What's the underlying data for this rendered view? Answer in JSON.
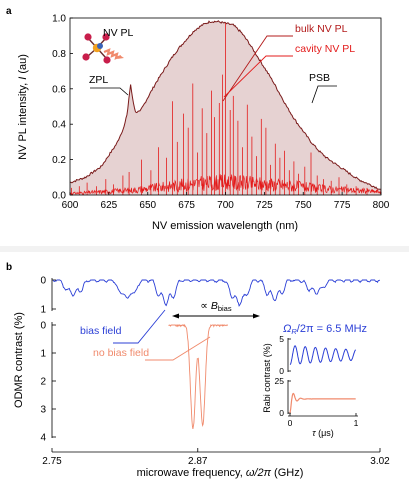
{
  "panels": {
    "a": "a",
    "b": "b"
  },
  "chart_data": [
    {
      "type": "line",
      "panel": "a",
      "xlabel": "NV emission wavelength (nm)",
      "ylabel": "NV PL intensity, I (au)",
      "ylabel_main": "NV PL intensity, ",
      "ylabel_var": "I",
      "ylabel_unit": " (au)",
      "xlim": [
        600,
        800
      ],
      "ylim": [
        0,
        1.0
      ],
      "xticks": [
        600,
        625,
        650,
        675,
        700,
        725,
        750,
        775,
        800
      ],
      "xtick_labels": [
        "600",
        "625",
        "650",
        "675",
        "700",
        "725",
        "750",
        "775",
        "800"
      ],
      "yticks": [
        0,
        0.2,
        0.4,
        0.6,
        0.8,
        1.0
      ],
      "ytick_labels": [
        "0.0",
        "0.2",
        "0.4",
        "0.6",
        "0.8",
        "1.0"
      ],
      "legend": [
        "bulk NV PL",
        "cavity NV PL"
      ],
      "inset_label": "NV PL",
      "annotations": [
        "ZPL",
        "PSB"
      ],
      "colors": {
        "bulk": "#7a1b1b",
        "bulk_fill": "#e6d2d2",
        "cavity": "#e31b1b",
        "legend": "#b31b1b"
      },
      "series": [
        {
          "name": "bulk NV PL",
          "x": [
            600,
            610,
            620,
            630,
            635,
            637,
            638,
            639,
            640,
            642,
            645,
            650,
            655,
            660,
            665,
            670,
            675,
            680,
            685,
            690,
            695,
            700,
            705,
            710,
            715,
            720,
            725,
            730,
            735,
            740,
            745,
            750,
            755,
            760,
            765,
            770,
            775,
            780,
            785,
            790,
            795,
            800
          ],
          "y": [
            0.07,
            0.1,
            0.16,
            0.29,
            0.39,
            0.47,
            0.56,
            0.62,
            0.56,
            0.47,
            0.47,
            0.55,
            0.63,
            0.7,
            0.77,
            0.83,
            0.88,
            0.93,
            0.96,
            0.98,
            0.98,
            0.97,
            0.96,
            0.92,
            0.86,
            0.79,
            0.72,
            0.65,
            0.57,
            0.49,
            0.42,
            0.36,
            0.3,
            0.25,
            0.21,
            0.18,
            0.15,
            0.12,
            0.09,
            0.07,
            0.05,
            0.03
          ]
        },
        {
          "name": "cavity NV PL",
          "base_x": [
            600,
            620,
            640,
            660,
            680,
            700,
            720,
            740,
            760,
            780,
            800
          ],
          "base_y": [
            0.01,
            0.02,
            0.03,
            0.05,
            0.07,
            0.08,
            0.07,
            0.06,
            0.04,
            0.03,
            0.02
          ],
          "peaks_x": [
            601,
            606,
            611,
            617,
            623,
            628,
            634,
            638,
            646,
            652,
            657,
            662,
            666,
            669,
            673,
            676,
            679,
            682,
            685,
            688,
            691,
            693,
            696,
            698,
            700,
            703,
            705,
            708,
            711,
            714,
            717,
            720,
            723,
            726,
            729,
            732,
            735,
            738,
            741,
            744,
            747,
            751,
            755,
            759,
            763,
            768,
            773,
            778,
            784,
            791
          ],
          "peaks_y": [
            0.04,
            0.05,
            0.07,
            0.05,
            0.09,
            0.06,
            0.11,
            0.13,
            0.2,
            0.14,
            0.27,
            0.21,
            0.53,
            0.3,
            0.46,
            0.38,
            0.63,
            0.24,
            0.49,
            0.35,
            0.59,
            0.44,
            0.52,
            0.68,
            0.97,
            0.48,
            0.56,
            0.42,
            0.27,
            0.51,
            0.33,
            0.22,
            0.43,
            0.38,
            0.17,
            0.29,
            0.21,
            0.25,
            0.14,
            0.19,
            0.12,
            0.16,
            0.24,
            0.11,
            0.09,
            0.08,
            0.1,
            0.06,
            0.05,
            0.04
          ]
        }
      ]
    },
    {
      "type": "line",
      "panel": "b",
      "xlabel": "microwave frequency, ω/2π (GHz)",
      "xlabel_pre": "microwave frequency, ",
      "xlabel_var": "ω/2π",
      "xlabel_unit": " (GHz)",
      "ylabel": "ODMR contrast (%)",
      "xlim": [
        2.75,
        3.02
      ],
      "xticks": [
        2.75,
        2.87,
        3.02
      ],
      "xtick_labels": [
        "2.75",
        "2.87",
        "3.02"
      ],
      "series": [
        {
          "name": "bias field",
          "yticks": [
            0,
            1
          ],
          "ytick_labels": [
            "0",
            "1"
          ],
          "ylim": [
            0,
            1
          ],
          "dips_x": [
            2.762,
            2.768,
            2.774,
            2.806,
            2.812,
            2.818,
            2.838,
            2.844,
            2.85,
            2.898,
            2.904,
            2.91,
            2.927,
            2.933,
            2.939,
            2.961,
            2.967,
            2.973
          ],
          "dips_depth": [
            0.35,
            0.5,
            0.35,
            0.45,
            0.65,
            0.45,
            0.55,
            0.8,
            0.55,
            0.55,
            0.85,
            0.55,
            0.45,
            0.65,
            0.45,
            0.3,
            0.45,
            0.3
          ]
        },
        {
          "name": "no bias field",
          "yticks": [
            0,
            1,
            2,
            3,
            4
          ],
          "ytick_labels": [
            "0",
            "1",
            "2",
            "3",
            "4"
          ],
          "ylim": [
            0,
            4
          ],
          "dips_x": [
            2.866,
            2.874
          ],
          "dips_depth": [
            3.7,
            3.6
          ]
        }
      ],
      "annotations": {
        "bias_label": "bias field",
        "nobias_label": "no bias field",
        "splitting_prefix": "∝ ",
        "splitting_var": "B",
        "splitting_sub": "bias"
      },
      "colors": {
        "bias": "#2b3fd6",
        "nobias": "#f08a6c",
        "text_blue": "#2b3fd6"
      }
    },
    {
      "type": "line",
      "panel": "b-inset",
      "title": "Ω_R/2π = 6.5 MHz",
      "title_parts": {
        "var": "Ω",
        "sub": "R",
        "rest": "/2π = 6.5 MHz"
      },
      "ylabel": "Rabi contrast (%)",
      "xlabel": "τ (μs)",
      "xlabel_var": "τ",
      "xlabel_unit": " (μs)",
      "xlim": [
        0,
        1
      ],
      "xticks": [
        0,
        1
      ],
      "xtick_labels": [
        "0",
        "1"
      ],
      "top_yticks": [
        0,
        5
      ],
      "top_ytick_labels": [
        "0",
        "5"
      ],
      "bottom_yticks": [
        0,
        25
      ],
      "bottom_ytick_labels": [
        "0",
        "25"
      ],
      "series": [
        {
          "name": "bias field",
          "rabi_freq_mhz": 6.5,
          "offset": 2.5,
          "amp": 1.5,
          "ylim": [
            0,
            5
          ]
        },
        {
          "name": "no bias field",
          "offset": 11,
          "amp": 11,
          "ylim": [
            0,
            25
          ]
        }
      ],
      "colors": {
        "top": "#2b3fd6",
        "bottom": "#f08a6c"
      }
    }
  ]
}
